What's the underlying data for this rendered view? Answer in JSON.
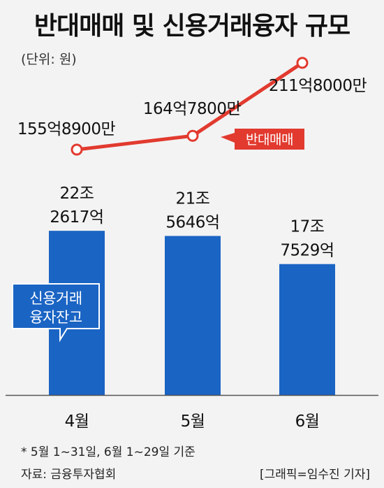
{
  "title": "반대매매 및 신용거래융자 규모",
  "unit_note": "(단위: 원)",
  "colors": {
    "bar": "#1a64c4",
    "line": "#e23a2f",
    "axis": "#555555",
    "background": "#f3f3f3"
  },
  "chart_data": {
    "type": "bar",
    "categories": [
      "4월",
      "5월",
      "6월"
    ],
    "series": [
      {
        "name": "신용거래융자잔고",
        "type": "bar",
        "values": [
          222617,
          215646,
          177529
        ],
        "labels": [
          [
            "22조",
            "2617억"
          ],
          [
            "21조",
            "5646억"
          ],
          [
            "17조",
            "7529억"
          ]
        ]
      },
      {
        "name": "반대매매",
        "type": "line",
        "values": [
          155.89,
          164.78,
          211.8
        ],
        "labels": [
          "155억8900만",
          "164억7800만",
          "211억8000만"
        ]
      }
    ]
  },
  "footnote": "* 5월 1~31일, 6월 1~29일 기준",
  "source": "자료: 금융투자협회",
  "credit": "[그래픽=임수진 기자]"
}
